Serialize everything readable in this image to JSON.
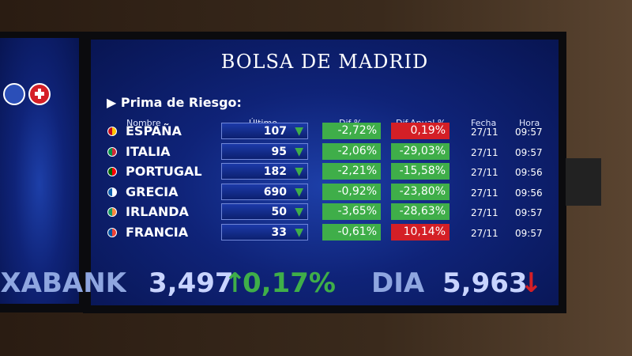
{
  "header": {
    "title": "BOLSA DE MADRID",
    "section": "Prima de Riesgo:"
  },
  "table": {
    "columns": [
      "Nombre",
      "Último",
      "Dif %",
      "Dif.Anual %",
      "Fecha",
      "Hora"
    ],
    "rows": [
      {
        "name": "ESPAÑA",
        "last": "107",
        "diff": "-2,72%",
        "annual": "0,19%",
        "annual_color": "#d41f26",
        "date": "27/11",
        "time": "09:57"
      },
      {
        "name": "ITALIA",
        "last": "95",
        "diff": "-2,06%",
        "annual": "-29,03%",
        "annual_color": "#3fae49",
        "date": "27/11",
        "time": "09:57"
      },
      {
        "name": "PORTUGAL",
        "last": "182",
        "diff": "-2,21%",
        "annual": "-15,58%",
        "annual_color": "#3fae49",
        "date": "27/11",
        "time": "09:56"
      },
      {
        "name": "GRECIA",
        "last": "690",
        "diff": "-0,92%",
        "annual": "-23,80%",
        "annual_color": "#3fae49",
        "date": "27/11",
        "time": "09:56"
      },
      {
        "name": "IRLANDA",
        "last": "50",
        "diff": "-3,65%",
        "annual": "-28,63%",
        "annual_color": "#3fae49",
        "date": "27/11",
        "time": "09:57"
      },
      {
        "name": "FRANCIA",
        "last": "33",
        "diff": "-0,61%",
        "annual": "10,14%",
        "annual_color": "#d41f26",
        "date": "27/11",
        "time": "09:57"
      }
    ]
  },
  "ticker": [
    {
      "name": "XABANK",
      "price": "3,497",
      "change": "0,17%"
    },
    {
      "name": "DIA",
      "price": "5,963"
    }
  ]
}
